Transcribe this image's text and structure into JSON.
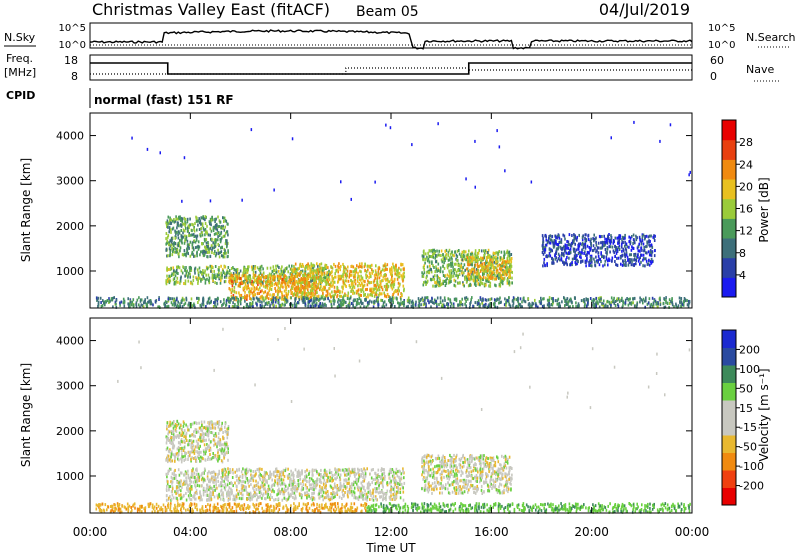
{
  "header": {
    "title": "Christmas Valley East (fitACF)",
    "beam": "Beam 05",
    "date": "04/Jul/2019"
  },
  "status_panels": {
    "nsky_label": "N.Sky",
    "nsearch_label": "N.Search",
    "noise_ticks": [
      "10^5",
      "10^0"
    ],
    "freq_label": "Freq.",
    "freq_unit": "[MHz]",
    "freq_ticks": [
      "18",
      "8"
    ],
    "nave_label": "Nave",
    "nave_ticks": [
      "60",
      "0"
    ],
    "cpid_label": "CPID",
    "cpid_text": "normal (fast) 151 RF"
  },
  "colors": {
    "power_scale": [
      "#1b1bf0",
      "#2a3fa8",
      "#3d6f7a",
      "#4a9a5a",
      "#9acb3a",
      "#e8c020",
      "#f08a10",
      "#e84010",
      "#e80000"
    ],
    "velocity_scale": [
      "#e80000",
      "#f04010",
      "#f08a10",
      "#e8b830",
      "#c8c8c0",
      "#c8c8c0",
      "#6ad040",
      "#3d8a5a",
      "#2a4aa0",
      "#1b2ad0"
    ]
  },
  "chart_data": [
    {
      "type": "heatmap",
      "ylabel": "Slant Range [km]",
      "ylim": [
        180,
        4500
      ],
      "yticks": [
        "1000",
        "2000",
        "3000",
        "4000"
      ],
      "colorbar_label": "Power [dB]",
      "colorbar_ticks": [
        "4",
        "8",
        "12",
        "16",
        "20",
        "24",
        "28"
      ],
      "xlim_hours": [
        0,
        24
      ],
      "echo_regions": [
        {
          "t0": 3.0,
          "t1": 5.5,
          "r0": 1300,
          "r1": 2200,
          "level": 14
        },
        {
          "t0": 3.0,
          "t1": 9.5,
          "r0": 700,
          "r1": 1100,
          "level": 16
        },
        {
          "t0": 5.5,
          "t1": 9.0,
          "r0": 350,
          "r1": 900,
          "level": 24
        },
        {
          "t0": 8.0,
          "t1": 12.5,
          "r0": 400,
          "r1": 1150,
          "level": 22
        },
        {
          "t0": 13.2,
          "t1": 16.8,
          "r0": 650,
          "r1": 1450,
          "level": 16
        },
        {
          "t0": 15.0,
          "t1": 16.8,
          "r0": 800,
          "r1": 1300,
          "level": 22
        },
        {
          "t0": 18.0,
          "t1": 22.5,
          "r0": 1100,
          "r1": 1800,
          "level": 6
        },
        {
          "t0": 0.2,
          "t1": 23.9,
          "r0": 180,
          "r1": 400,
          "level": 12
        }
      ]
    },
    {
      "type": "heatmap",
      "xlabel": "Time UT",
      "ylabel": "Slant Range [km]",
      "ylim": [
        180,
        4500
      ],
      "yticks": [
        "1000",
        "2000",
        "3000",
        "4000"
      ],
      "xticks": [
        "00:00",
        "04:00",
        "08:00",
        "12:00",
        "16:00",
        "20:00",
        "00:00"
      ],
      "colorbar_label": "Velocity [m s⁻¹]",
      "colorbar_ticks": [
        "-200",
        "-100",
        "-50",
        "-15",
        "15",
        "50",
        "100",
        "200"
      ],
      "xlim_hours": [
        0,
        24
      ],
      "echo_regions": [
        {
          "t0": 3.0,
          "t1": 5.5,
          "r0": 1300,
          "r1": 2200,
          "level": 0
        },
        {
          "t0": 3.0,
          "t1": 12.5,
          "r0": 450,
          "r1": 1150,
          "level": 0
        },
        {
          "t0": 13.2,
          "t1": 16.8,
          "r0": 600,
          "r1": 1450,
          "level": 0
        },
        {
          "t0": 0.2,
          "t1": 11.0,
          "r0": 180,
          "r1": 380,
          "level": -40
        },
        {
          "t0": 11.0,
          "t1": 23.9,
          "r0": 180,
          "r1": 380,
          "level": 40
        }
      ]
    }
  ]
}
